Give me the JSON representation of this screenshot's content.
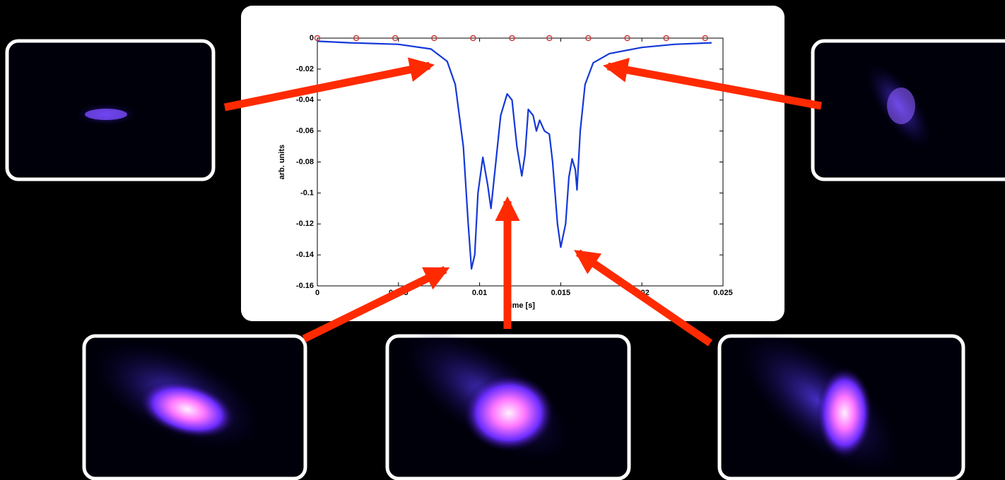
{
  "chart_data": {
    "type": "line",
    "xlabel": "Time [s]",
    "ylabel": "arb. units",
    "xlim": [
      0,
      0.025
    ],
    "ylim": [
      -0.16,
      0
    ],
    "xticks": [
      0,
      0.005,
      0.01,
      0.015,
      0.02,
      0.025
    ],
    "yticks": [
      -0.16,
      -0.14,
      -0.12,
      -0.1,
      -0.08,
      -0.06,
      -0.04,
      -0.02,
      0
    ],
    "grid": false,
    "series": [
      {
        "color": "#1438d8",
        "marker": false,
        "x": [
          0,
          0.002,
          0.005,
          0.007,
          0.008,
          0.0085,
          0.009,
          0.0093,
          0.0095,
          0.0097,
          0.0099,
          0.0102,
          0.0105,
          0.0107,
          0.011,
          0.0113,
          0.0117,
          0.012,
          0.0123,
          0.0126,
          0.0128,
          0.013,
          0.0133,
          0.0135,
          0.0137,
          0.014,
          0.0143,
          0.0145,
          0.0148,
          0.015,
          0.0153,
          0.0155,
          0.0157,
          0.0159,
          0.016,
          0.0162,
          0.0165,
          0.017,
          0.018,
          0.02,
          0.022,
          0.0243
        ],
        "values": [
          -0.002,
          -0.003,
          -0.004,
          -0.007,
          -0.015,
          -0.03,
          -0.07,
          -0.12,
          -0.149,
          -0.14,
          -0.1,
          -0.077,
          -0.095,
          -0.11,
          -0.08,
          -0.05,
          -0.036,
          -0.04,
          -0.07,
          -0.089,
          -0.075,
          -0.046,
          -0.05,
          -0.06,
          -0.053,
          -0.06,
          -0.062,
          -0.08,
          -0.12,
          -0.135,
          -0.12,
          -0.09,
          -0.078,
          -0.085,
          -0.098,
          -0.06,
          -0.03,
          -0.016,
          -0.01,
          -0.006,
          -0.004,
          -0.003
        ]
      },
      {
        "color": "#cc3b3b",
        "marker": true,
        "x": [
          0,
          0.0024,
          0.0048,
          0.0072,
          0.0096,
          0.012,
          0.0143,
          0.0167,
          0.0191,
          0.0215,
          0.0239
        ],
        "values": [
          0,
          0,
          0,
          0,
          0,
          0,
          0,
          0,
          0,
          0,
          0
        ]
      }
    ]
  }
}
